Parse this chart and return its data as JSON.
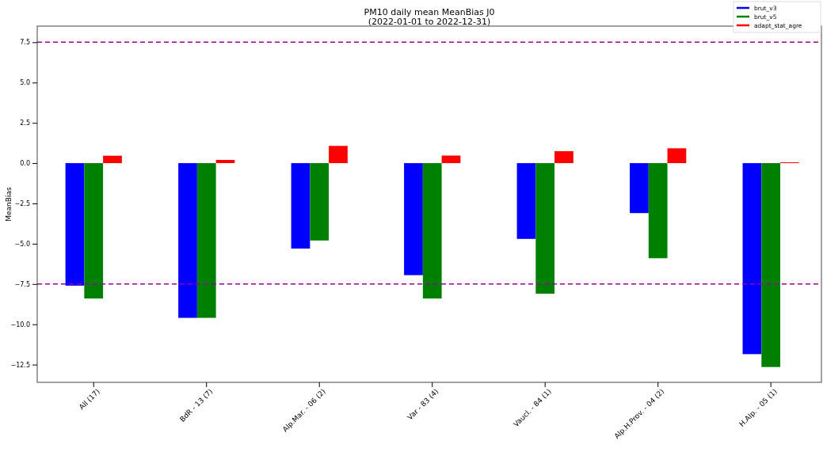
{
  "chart_data": {
    "type": "bar",
    "title": "PM10 daily mean MeanBias J0",
    "subtitle": "(2022-01-01 to 2022-12-31)",
    "ylabel": "MeanBias",
    "categories": [
      "All (17)",
      "BdR - 13 (7)",
      "Alp.Mar. - 06 (2)",
      "Var - 83 (4)",
      "Vaucl. - 84 (1)",
      "Alp.H.Prov. - 04 (2)",
      "H.Alp. - 05 (1)"
    ],
    "series": [
      {
        "name": "brut_v3",
        "color": "#0000ff",
        "values": [
          -7.6,
          -9.6,
          -5.3,
          -6.95,
          -4.7,
          -3.1,
          -11.85
        ]
      },
      {
        "name": "brut_v5",
        "color": "#008000",
        "values": [
          -8.4,
          -9.6,
          -4.8,
          -8.4,
          -8.1,
          -5.9,
          -12.65
        ]
      },
      {
        "name": "adapt_stat_agre",
        "color": "#ff0000",
        "values": [
          0.46,
          0.2,
          1.07,
          0.47,
          0.74,
          0.92,
          0.05
        ]
      }
    ],
    "ylim": [
      -13.6,
      8.5
    ],
    "yticks": [
      {
        "value": -12.5,
        "label": "−12.5"
      },
      {
        "value": -10,
        "label": "−10.0"
      },
      {
        "value": -7.5,
        "label": "−7.5"
      },
      {
        "value": -5,
        "label": "−5.0"
      },
      {
        "value": -2.5,
        "label": "−2.5"
      },
      {
        "value": 0,
        "label": "0.0"
      },
      {
        "value": 2.5,
        "label": "2.5"
      },
      {
        "value": 5,
        "label": "5.0"
      },
      {
        "value": 7.5,
        "label": "7.5"
      }
    ],
    "ref_lines": [
      {
        "axis": "y",
        "value": 7.5,
        "color": "#990099",
        "line_style": "dashed"
      },
      {
        "axis": "y",
        "value": -7.5,
        "color": "#990099",
        "line_style": "dashed"
      }
    ],
    "legend": "top right",
    "grid": false
  }
}
